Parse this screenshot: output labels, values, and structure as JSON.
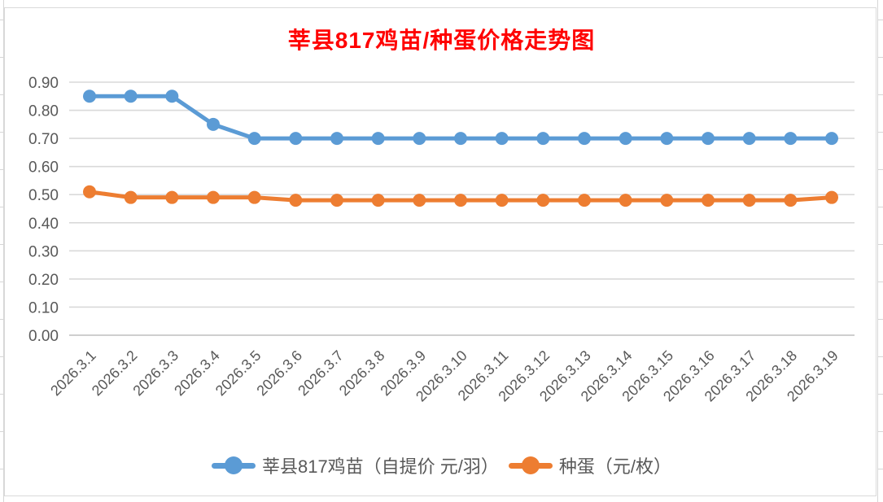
{
  "window": {
    "background": "#FFFFFF"
  },
  "title": {
    "text": "莘县817鸡苗/种蛋价格走势图",
    "color": "#FF0000"
  },
  "chart_data": {
    "type": "line",
    "title": "莘县817鸡苗/种蛋价格走势图",
    "categories": [
      "2026.3.1",
      "2026.3.2",
      "2026.3.3",
      "2026.3.4",
      "2026.3.5",
      "2026.3.6",
      "2026.3.7",
      "2026.3.8",
      "2026.3.9",
      "2026.3.10",
      "2026.3.11",
      "2026.3.12",
      "2026.3.13",
      "2026.3.14",
      "2026.3.15",
      "2026.3.16",
      "2026.3.17",
      "2026.3.18",
      "2026.3.19"
    ],
    "series": [
      {
        "name": "莘县817鸡苗（自提价 元/羽）",
        "color": "#5B9BD5",
        "marker": "circle",
        "values": [
          0.85,
          0.85,
          0.85,
          0.75,
          0.7,
          0.7,
          0.7,
          0.7,
          0.7,
          0.7,
          0.7,
          0.7,
          0.7,
          0.7,
          0.7,
          0.7,
          0.7,
          0.7,
          0.7
        ]
      },
      {
        "name": "种蛋（元/枚）",
        "color": "#ED7D31",
        "marker": "circle",
        "values": [
          0.51,
          0.49,
          0.49,
          0.49,
          0.49,
          0.48,
          0.48,
          0.48,
          0.48,
          0.48,
          0.48,
          0.48,
          0.48,
          0.48,
          0.48,
          0.48,
          0.48,
          0.48,
          0.49
        ]
      }
    ],
    "xlabel": "",
    "ylabel": "",
    "ylim": [
      0,
      0.9
    ],
    "ytick_step": 0.1,
    "ytick_labels": [
      "0.00",
      "0.10",
      "0.20",
      "0.30",
      "0.40",
      "0.50",
      "0.60",
      "0.70",
      "0.80",
      "0.90"
    ],
    "x_tick_rotation": -45,
    "grid": true,
    "legend_position": "bottom",
    "axis_text_color": "#595959",
    "gridline_color": "#D9D9D9",
    "axis_line_color": "#BFBFBF"
  }
}
